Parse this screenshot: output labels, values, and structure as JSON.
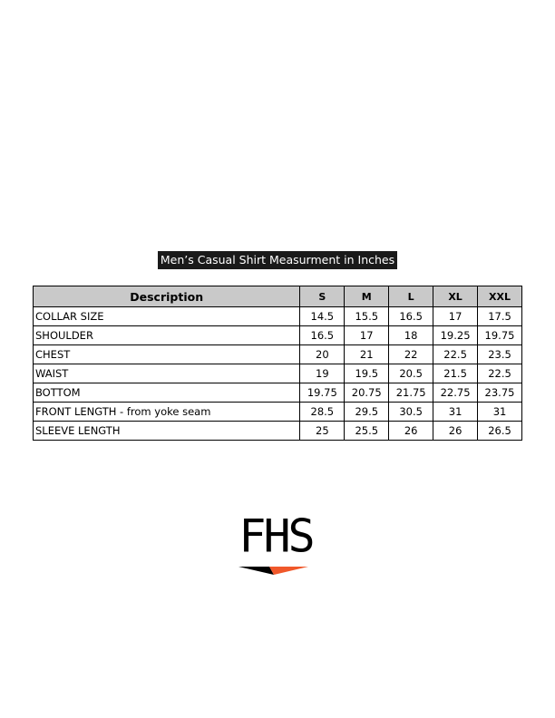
{
  "title": "Men’s Casual Shirt Measurment in Inches",
  "table": {
    "headers": [
      "Description",
      "S",
      "M",
      "L",
      "XL",
      "XXL"
    ],
    "rows": [
      [
        "COLLAR SIZE",
        "14.5",
        "15.5",
        "16.5",
        "17",
        "17.5"
      ],
      [
        "SHOULDER",
        "16.5",
        "17",
        "18",
        "19.25",
        "19.75"
      ],
      [
        "CHEST",
        "20",
        "21",
        "22",
        "22.5",
        "23.5"
      ],
      [
        "WAIST",
        "19",
        "19.5",
        "20.5",
        "21.5",
        "22.5"
      ],
      [
        "BOTTOM",
        "19.75",
        "20.75",
        "21.75",
        "22.75",
        "23.75"
      ],
      [
        "FRONT LENGTH - from yoke seam",
        "28.5",
        "29.5",
        "30.5",
        "31",
        "31"
      ],
      [
        "SLEEVE LENGTH",
        "25",
        "25.5",
        "26",
        "26",
        "26.5"
      ]
    ]
  },
  "logo": {
    "text": "FHS"
  }
}
